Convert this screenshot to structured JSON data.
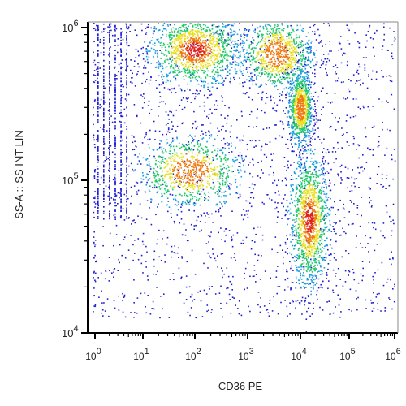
{
  "chart_data": {
    "type": "scatter",
    "style": "density-colored flow cytometry dot plot",
    "title": "",
    "xlabel": "CD36 PE",
    "ylabel": "SS-A :: SS INT LIN",
    "x_scale": "biexponential",
    "y_scale": "log",
    "xlim": [
      -1,
      1000000
    ],
    "ylim": [
      10000,
      1150000
    ],
    "x_ticks": [
      {
        "value": 1,
        "base": "10",
        "exp": "0"
      },
      {
        "value": 10,
        "base": "10",
        "exp": "1"
      },
      {
        "value": 100,
        "base": "10",
        "exp": "2"
      },
      {
        "value": 1000,
        "base": "10",
        "exp": "3"
      },
      {
        "value": 10000,
        "base": "10",
        "exp": "4"
      },
      {
        "value": 100000,
        "base": "10",
        "exp": "5"
      },
      {
        "value": 1000000,
        "base": "10",
        "exp": "6"
      }
    ],
    "y_ticks": [
      {
        "value": 10000,
        "base": "10",
        "exp": "4"
      },
      {
        "value": 100000,
        "base": "10",
        "exp": "5"
      },
      {
        "value": 1000000,
        "base": "10",
        "exp": "6"
      }
    ],
    "grid": false,
    "density_colormap": [
      "#1f1fd0",
      "#1aa0e0",
      "#22c96b",
      "#e8e020",
      "#f07a10",
      "#e0201a"
    ],
    "populations": [
      {
        "x": 100,
        "y": 720000,
        "spread_x": 0.45,
        "spread_y": 0.12,
        "peak": "high"
      },
      {
        "x": 3500,
        "y": 680000,
        "spread_x": 0.35,
        "spread_y": 0.12,
        "peak": "medium"
      },
      {
        "x": 10000,
        "y": 300000,
        "spread_x": 0.12,
        "spread_y": 0.12,
        "peak": "medium"
      },
      {
        "x": 80,
        "y": 115000,
        "spread_x": 0.5,
        "spread_y": 0.12,
        "peak": "medium"
      },
      {
        "x": 15000,
        "y": 55000,
        "spread_x": 0.2,
        "spread_y": 0.22,
        "peak": "high"
      }
    ]
  }
}
